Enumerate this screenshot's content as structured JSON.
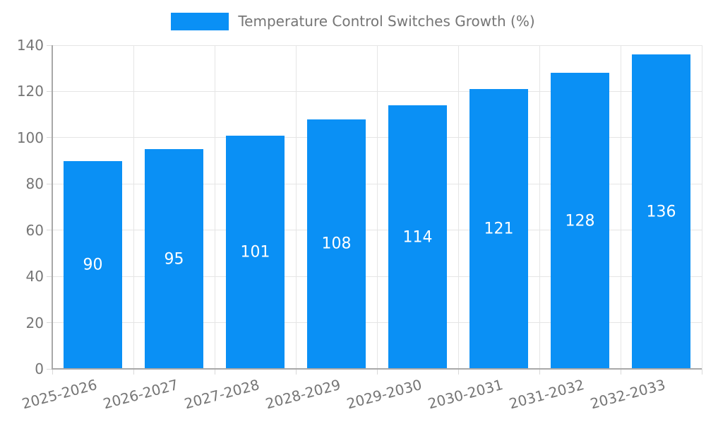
{
  "chart_data": {
    "type": "bar",
    "title": "Temperature Control Switches Growth (%)",
    "legend": {
      "position": "top",
      "label": "Temperature Control Switches Growth (%)"
    },
    "categories": [
      "2025-2026",
      "2026-2027",
      "2027-2028",
      "2028-2029",
      "2029-2030",
      "2030-2031",
      "2031-2032",
      "2032-2033"
    ],
    "values": [
      90,
      95,
      101,
      108,
      114,
      121,
      128,
      136
    ],
    "value_labels_shown": true,
    "xlabel": "",
    "ylabel": "",
    "ylim": [
      0,
      140
    ],
    "yticks": [
      0,
      20,
      40,
      60,
      80,
      100,
      120,
      140
    ],
    "grid": true,
    "x_label_rotation_deg": -15,
    "colors": {
      "bar": "#0a90f5",
      "grid": "#e5e5e5",
      "axis": "#a8a8a8",
      "tick_mark": "#d9d9d9",
      "tick_text": "#757575",
      "value_label": "#ffffff"
    }
  }
}
